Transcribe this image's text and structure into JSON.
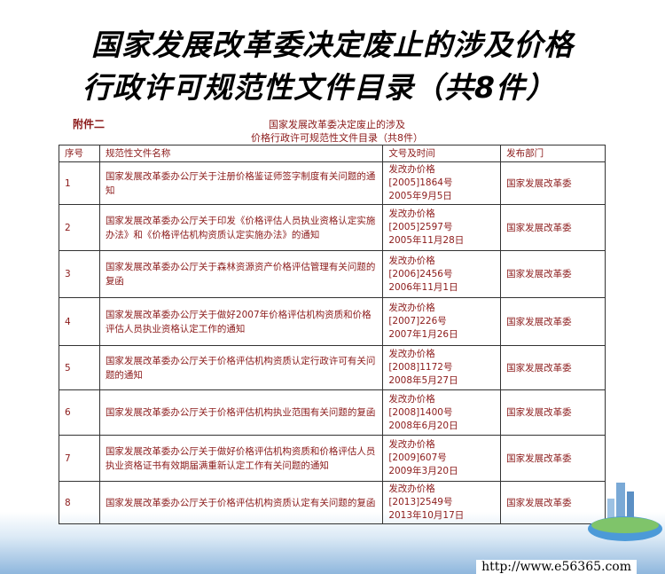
{
  "title": {
    "line1": "国家发展改革委决定废止的涉及价格",
    "line2": "行政许可规范性文件目录（共8件）"
  },
  "annex_label": "附件二",
  "doc_title": {
    "line1": "国家发展改革委决定废止的涉及",
    "line2": "价格行政许可规范性文件目录（共8件）"
  },
  "table": {
    "headers": [
      "序号",
      "规范性文件名称",
      "文号及时间",
      "发布部门"
    ],
    "rows": [
      {
        "no": "1",
        "name": "国家发展改革委办公厅关于注册价格鉴证师签字制度有关问题的通知",
        "doc": "发改办价格",
        "num": "[2005]1864号",
        "date": "2005年9月5日",
        "dept": "国家发展改革委"
      },
      {
        "no": "2",
        "name": "国家发展改革委办公厅关于印发《价格评估人员执业资格认定实施办法》和《价格评估机构资质认定实施办法》的通知",
        "doc": "发改办价格",
        "num": "[2005]2597号",
        "date": "2005年11月28日",
        "dept": "国家发展改革委"
      },
      {
        "no": "3",
        "name": "国家发展改革委办公厅关于森林资源资产价格评估管理有关问题的复函",
        "doc": "发改办价格",
        "num": "[2006]2456号",
        "date": "2006年11月1日",
        "dept": "国家发展改革委"
      },
      {
        "no": "4",
        "name": "国家发展改革委办公厅关于做好2007年价格评估机构资质和价格评估人员执业资格认定工作的通知",
        "doc": "发改办价格",
        "num": "[2007]226号",
        "date": "2007年1月26日",
        "dept": "国家发展改革委"
      },
      {
        "no": "5",
        "name": "国家发展改革委办公厅关于价格评估机构资质认定行政许可有关问题的通知",
        "doc": "发改办价格",
        "num": "[2008]1172号",
        "date": "2008年5月27日",
        "dept": "国家发展改革委"
      },
      {
        "no": "6",
        "name": "国家发展改革委办公厅关于价格评估机构执业范围有关问题的复函",
        "doc": "发改办价格",
        "num": "[2008]1400号",
        "date": "2008年6月20日",
        "dept": "国家发展改革委"
      },
      {
        "no": "7",
        "name": "国家发展改革委办公厅关于做好价格评估机构资质和价格评估人员执业资格证书有效期届满重新认定工作有关问题的通知",
        "doc": "发改办价格",
        "num": "[2009]607号",
        "date": "2009年3月20日",
        "dept": "国家发展改革委"
      },
      {
        "no": "8",
        "name": "国家发展改革委办公厅关于价格评估机构资质认定有关问题的复函",
        "doc": "发改办价格",
        "num": "[2013]2549号",
        "date": "2013年10月17日",
        "dept": "国家发展改革委"
      }
    ]
  },
  "watermark_url": "http://www.e56365.com",
  "colors": {
    "text_red": "#8b1a1a",
    "bottom_blue": "#8fb7dd"
  }
}
